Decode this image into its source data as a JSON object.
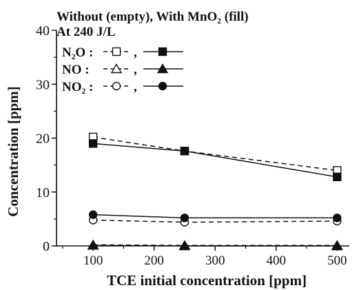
{
  "chart_data": {
    "type": "line",
    "title": "Without (empty), With MnO₂ (fill)",
    "subtitle": "At 240 J/L",
    "xlabel": "TCE initial concentration [ppm]",
    "ylabel": "Concentration [ppm]",
    "xlim": [
      40,
      520
    ],
    "ylim": [
      0,
      40
    ],
    "xticks": [
      100,
      200,
      300,
      400,
      500
    ],
    "yticks": [
      0,
      10,
      20,
      30,
      40
    ],
    "x": [
      100,
      250,
      500
    ],
    "legend": {
      "placement": "top-left",
      "entries": [
        {
          "label": "N₂O :",
          "separator": ","
        },
        {
          "label": "NO :",
          "separator": ","
        },
        {
          "label": "NO₂ :",
          "separator": ","
        }
      ]
    },
    "series": [
      {
        "species": "N2O",
        "condition": "without",
        "line": "dashed",
        "marker": "square",
        "filled": false,
        "values": [
          20.2,
          17.6,
          14.0
        ]
      },
      {
        "species": "N2O",
        "condition": "with",
        "line": "solid",
        "marker": "square",
        "filled": true,
        "values": [
          19.0,
          17.6,
          12.8
        ]
      },
      {
        "species": "NO",
        "condition": "without",
        "line": "dashed",
        "marker": "triangle",
        "filled": false,
        "values": [
          0.2,
          0.1,
          0.1
        ]
      },
      {
        "species": "NO",
        "condition": "with",
        "line": "solid",
        "marker": "triangle",
        "filled": true,
        "values": [
          0.1,
          0.0,
          0.0
        ]
      },
      {
        "species": "NO2",
        "condition": "without",
        "line": "dashed",
        "marker": "circle",
        "filled": false,
        "values": [
          4.8,
          4.4,
          4.6
        ]
      },
      {
        "species": "NO2",
        "condition": "with",
        "line": "solid",
        "marker": "circle",
        "filled": true,
        "values": [
          5.8,
          5.2,
          5.2
        ]
      }
    ],
    "grid": false,
    "colors": {
      "ink": "#111111"
    }
  }
}
